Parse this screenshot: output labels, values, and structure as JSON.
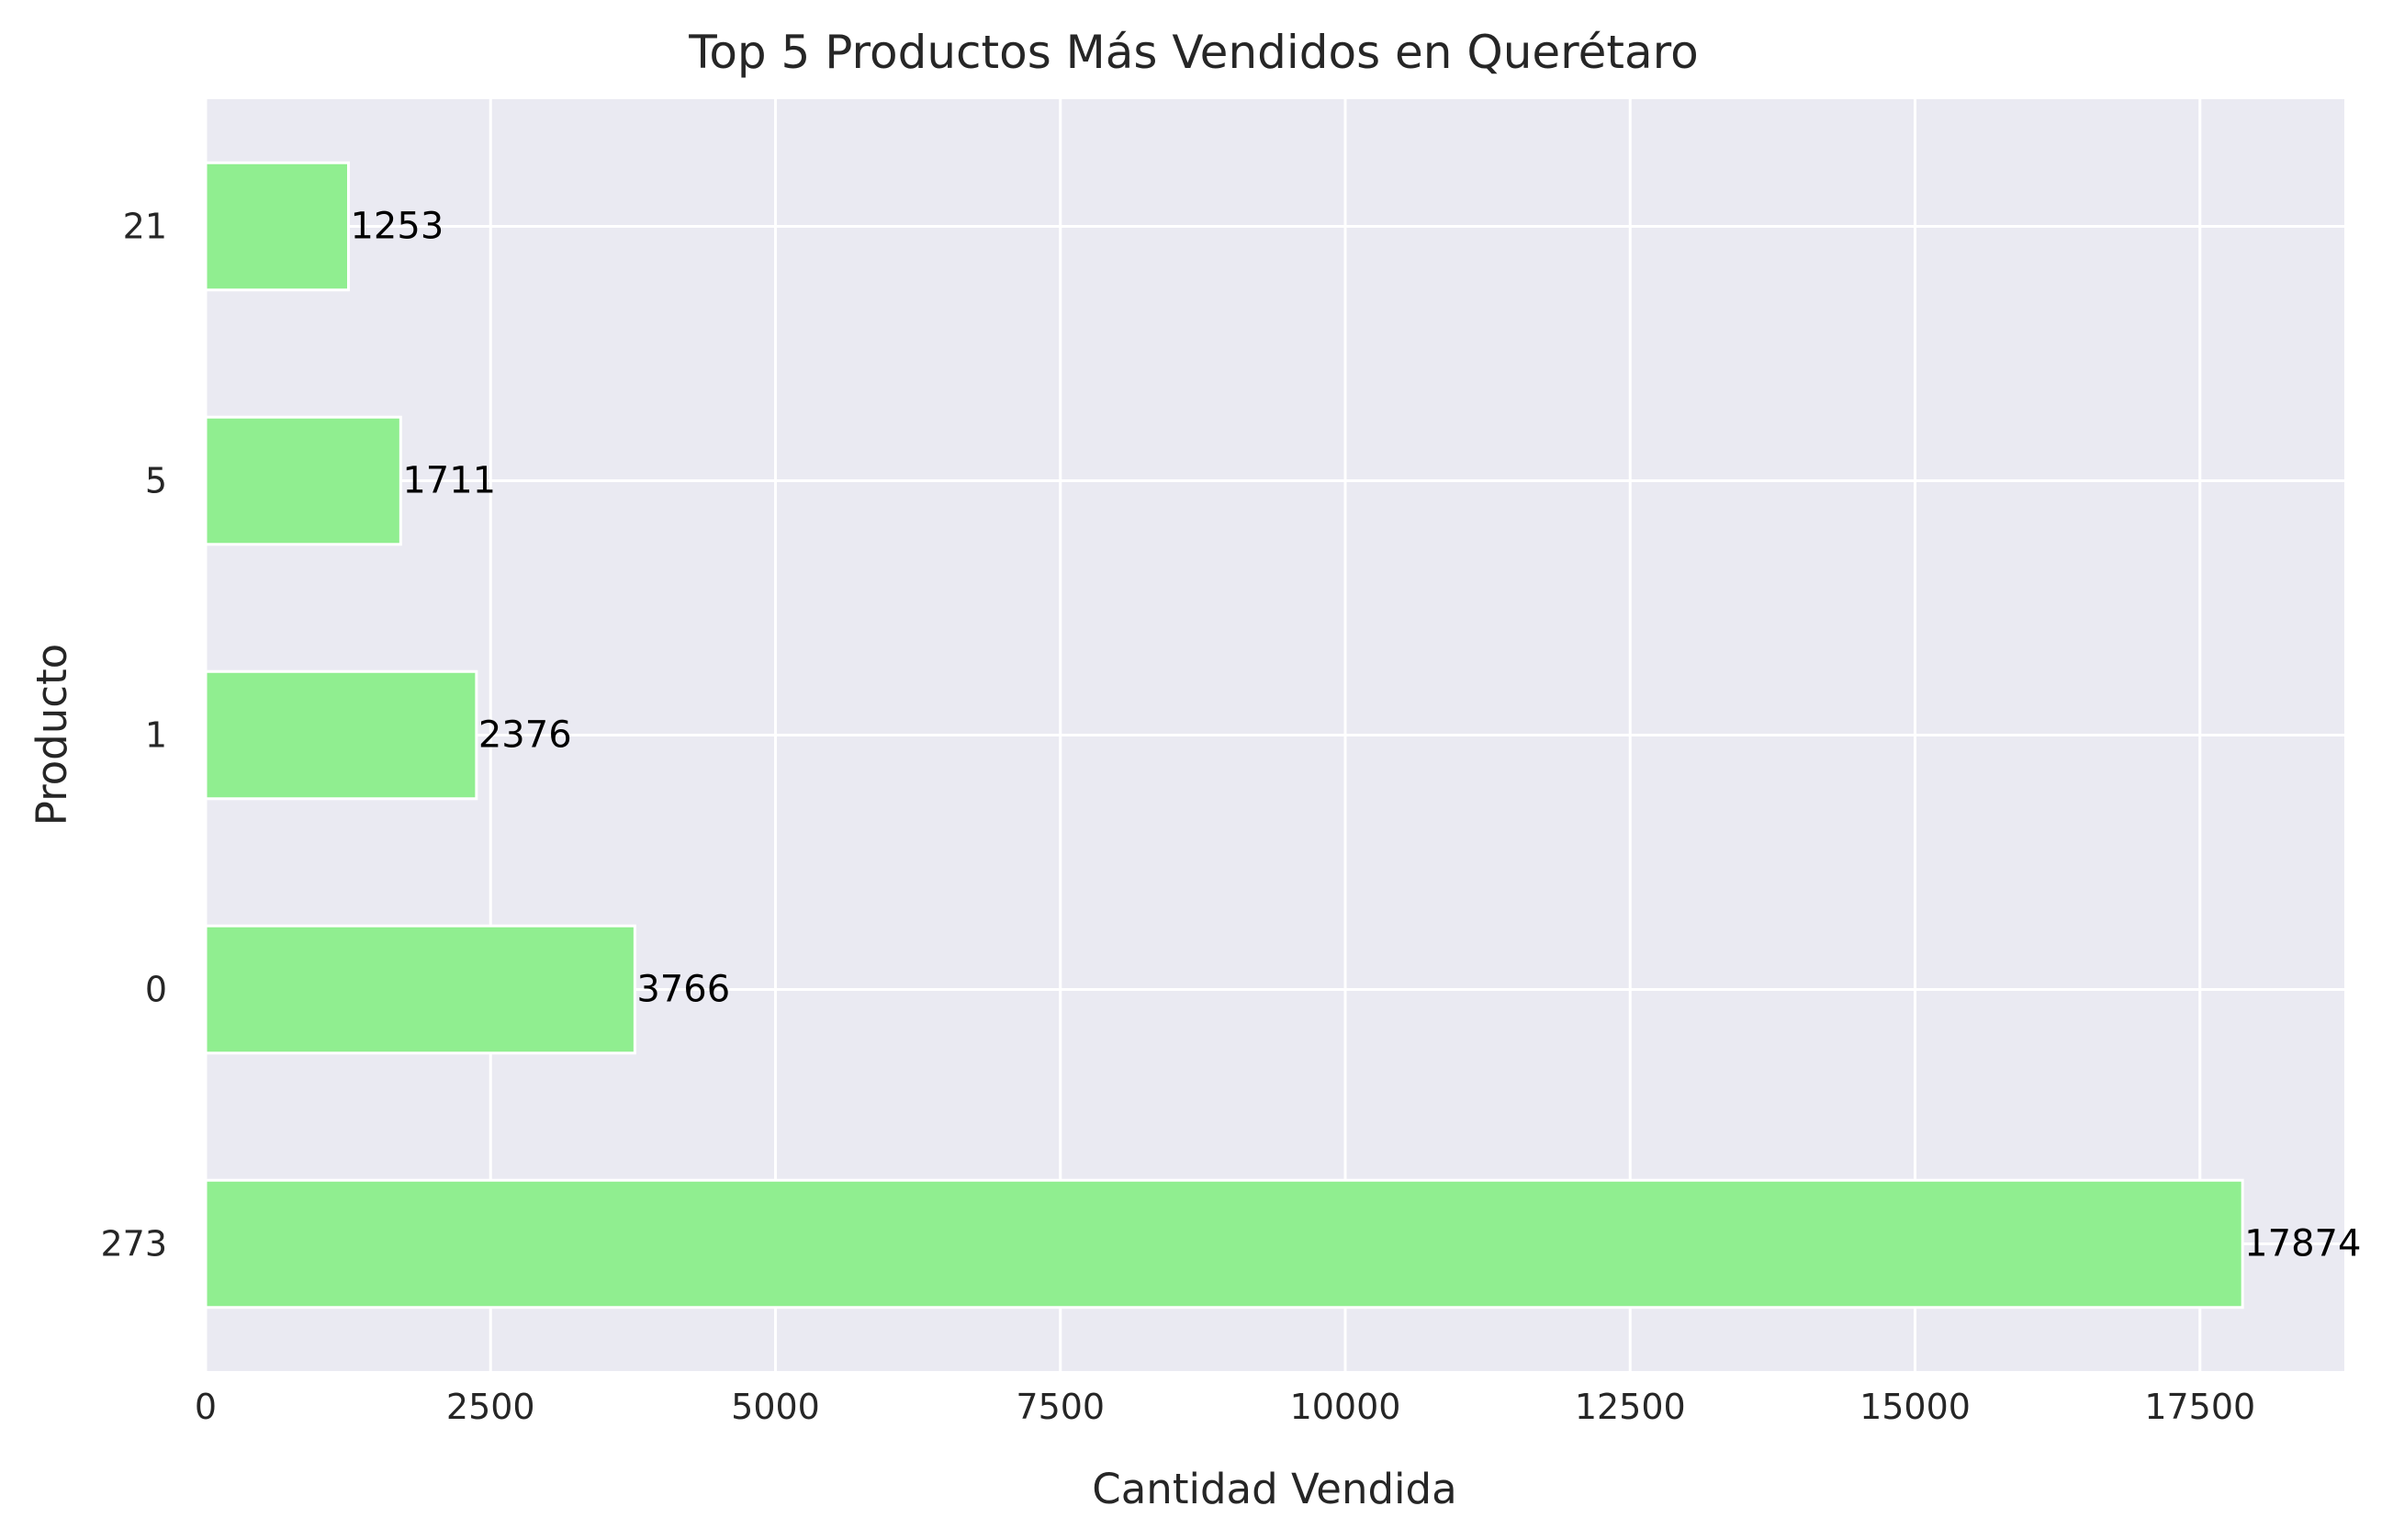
{
  "chart_data": {
    "type": "bar",
    "orientation": "horizontal",
    "title": "Top 5 Productos Más Vendidos en Querétaro",
    "xlabel": "Cantidad Vendida",
    "ylabel": "Producto",
    "categories": [
      "273",
      "0",
      "1",
      "5",
      "21"
    ],
    "values": [
      17874,
      3766,
      2376,
      1711,
      1253
    ],
    "data_labels": [
      "17874",
      "3766",
      "2376",
      "1711",
      "1253"
    ],
    "xticks": [
      "0",
      "2500",
      "5000",
      "7500",
      "10000",
      "12500",
      "15000",
      "17500"
    ],
    "xlim": [
      0,
      18767
    ],
    "grid": true,
    "colors": {
      "bar": "#90ee90",
      "plot_background": "#eaeaf2",
      "grid": "#ffffff",
      "text": "#262626"
    }
  }
}
